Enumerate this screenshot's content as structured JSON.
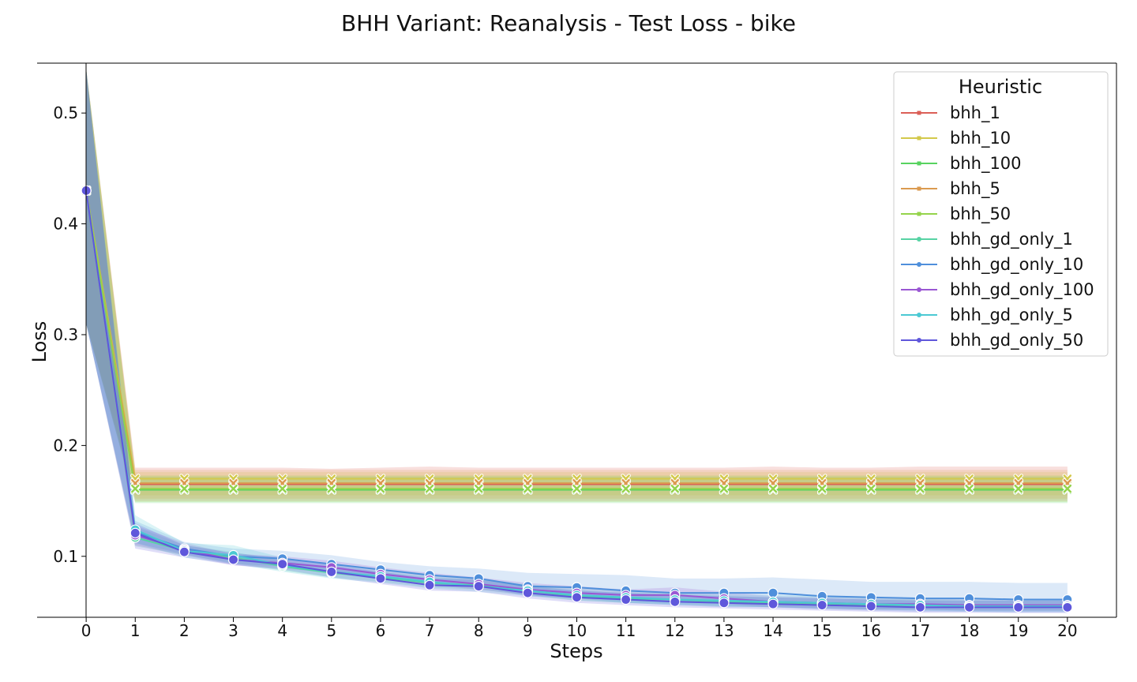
{
  "chart_data": {
    "type": "line",
    "title": "BHH Variant: Reanalysis - Test Loss - bike",
    "xlabel": "Steps",
    "ylabel": "Loss",
    "xlim": [
      -1,
      21
    ],
    "ylim": [
      0.045,
      0.545
    ],
    "x": [
      0,
      1,
      2,
      3,
      4,
      5,
      6,
      7,
      8,
      9,
      10,
      11,
      12,
      13,
      14,
      15,
      16,
      17,
      18,
      19,
      20
    ],
    "xticks": [
      0,
      1,
      2,
      3,
      4,
      5,
      6,
      7,
      8,
      9,
      10,
      11,
      12,
      13,
      14,
      15,
      16,
      17,
      18,
      19,
      20
    ],
    "yticks": [
      0.1,
      0.2,
      0.3,
      0.4,
      0.5
    ],
    "legend": {
      "title": "Heuristic",
      "position": "top-right"
    },
    "series": [
      {
        "name": "bhh_1",
        "color": "#db5f57",
        "marker": "x",
        "values": [
          0.43,
          0.165,
          0.165,
          0.165,
          0.165,
          0.165,
          0.165,
          0.165,
          0.165,
          0.165,
          0.165,
          0.165,
          0.165,
          0.165,
          0.165,
          0.165,
          0.165,
          0.165,
          0.165,
          0.165,
          0.165
        ],
        "band": [
          [
            0.31,
            0.54
          ],
          [
            0.15,
            0.18
          ],
          [
            0.15,
            0.18
          ],
          [
            0.15,
            0.18
          ],
          [
            0.15,
            0.18
          ],
          [
            0.15,
            0.179
          ],
          [
            0.15,
            0.18
          ],
          [
            0.15,
            0.181
          ],
          [
            0.15,
            0.18
          ],
          [
            0.15,
            0.18
          ],
          [
            0.15,
            0.18
          ],
          [
            0.15,
            0.18
          ],
          [
            0.15,
            0.18
          ],
          [
            0.15,
            0.18
          ],
          [
            0.15,
            0.181
          ],
          [
            0.15,
            0.18
          ],
          [
            0.15,
            0.18
          ],
          [
            0.15,
            0.181
          ],
          [
            0.15,
            0.181
          ],
          [
            0.15,
            0.181
          ],
          [
            0.15,
            0.181
          ]
        ]
      },
      {
        "name": "bhh_10",
        "color": "#d3c94b",
        "marker": "x",
        "values": [
          0.43,
          0.17,
          0.17,
          0.17,
          0.17,
          0.17,
          0.17,
          0.17,
          0.17,
          0.17,
          0.17,
          0.17,
          0.17,
          0.17,
          0.17,
          0.17,
          0.17,
          0.17,
          0.17,
          0.17,
          0.17
        ],
        "band": [
          [
            0.31,
            0.54
          ],
          [
            0.155,
            0.176
          ],
          [
            0.155,
            0.176
          ],
          [
            0.155,
            0.176
          ],
          [
            0.155,
            0.176
          ],
          [
            0.155,
            0.176
          ],
          [
            0.155,
            0.176
          ],
          [
            0.155,
            0.176
          ],
          [
            0.155,
            0.176
          ],
          [
            0.155,
            0.176
          ],
          [
            0.155,
            0.176
          ],
          [
            0.155,
            0.176
          ],
          [
            0.155,
            0.176
          ],
          [
            0.155,
            0.176
          ],
          [
            0.155,
            0.176
          ],
          [
            0.155,
            0.176
          ],
          [
            0.155,
            0.176
          ],
          [
            0.155,
            0.176
          ],
          [
            0.155,
            0.176
          ],
          [
            0.155,
            0.176
          ],
          [
            0.155,
            0.176
          ]
        ]
      },
      {
        "name": "bhh_100",
        "color": "#57d35f",
        "marker": "x",
        "values": [
          0.43,
          0.16,
          0.16,
          0.16,
          0.16,
          0.16,
          0.16,
          0.16,
          0.16,
          0.16,
          0.16,
          0.16,
          0.16,
          0.16,
          0.16,
          0.16,
          0.16,
          0.16,
          0.16,
          0.16,
          0.16
        ],
        "band": [
          [
            0.31,
            0.54
          ],
          [
            0.148,
            0.172
          ],
          [
            0.148,
            0.172
          ],
          [
            0.148,
            0.172
          ],
          [
            0.148,
            0.172
          ],
          [
            0.148,
            0.172
          ],
          [
            0.148,
            0.172
          ],
          [
            0.148,
            0.172
          ],
          [
            0.148,
            0.172
          ],
          [
            0.148,
            0.172
          ],
          [
            0.148,
            0.172
          ],
          [
            0.148,
            0.172
          ],
          [
            0.148,
            0.172
          ],
          [
            0.148,
            0.172
          ],
          [
            0.148,
            0.172
          ],
          [
            0.148,
            0.172
          ],
          [
            0.148,
            0.172
          ],
          [
            0.148,
            0.172
          ],
          [
            0.148,
            0.172
          ],
          [
            0.148,
            0.172
          ],
          [
            0.148,
            0.172
          ]
        ]
      },
      {
        "name": "bhh_5",
        "color": "#db9a4f",
        "marker": "x",
        "values": [
          0.43,
          0.166,
          0.166,
          0.166,
          0.166,
          0.166,
          0.166,
          0.166,
          0.166,
          0.166,
          0.166,
          0.166,
          0.166,
          0.166,
          0.166,
          0.166,
          0.166,
          0.166,
          0.166,
          0.166,
          0.166
        ],
        "band": [
          [
            0.31,
            0.54
          ],
          [
            0.152,
            0.178
          ],
          [
            0.152,
            0.178
          ],
          [
            0.152,
            0.178
          ],
          [
            0.152,
            0.178
          ],
          [
            0.152,
            0.178
          ],
          [
            0.152,
            0.178
          ],
          [
            0.152,
            0.178
          ],
          [
            0.152,
            0.178
          ],
          [
            0.152,
            0.178
          ],
          [
            0.152,
            0.178
          ],
          [
            0.152,
            0.178
          ],
          [
            0.152,
            0.178
          ],
          [
            0.152,
            0.178
          ],
          [
            0.152,
            0.178
          ],
          [
            0.152,
            0.178
          ],
          [
            0.152,
            0.178
          ],
          [
            0.152,
            0.178
          ],
          [
            0.152,
            0.178
          ],
          [
            0.152,
            0.178
          ],
          [
            0.152,
            0.178
          ]
        ]
      },
      {
        "name": "bhh_50",
        "color": "#95d34b",
        "marker": "x",
        "values": [
          0.43,
          0.161,
          0.161,
          0.161,
          0.161,
          0.161,
          0.161,
          0.161,
          0.161,
          0.161,
          0.161,
          0.161,
          0.161,
          0.161,
          0.161,
          0.161,
          0.161,
          0.161,
          0.161,
          0.161,
          0.161
        ],
        "band": [
          [
            0.31,
            0.54
          ],
          [
            0.149,
            0.173
          ],
          [
            0.149,
            0.173
          ],
          [
            0.149,
            0.173
          ],
          [
            0.149,
            0.173
          ],
          [
            0.149,
            0.173
          ],
          [
            0.149,
            0.173
          ],
          [
            0.149,
            0.173
          ],
          [
            0.149,
            0.173
          ],
          [
            0.149,
            0.173
          ],
          [
            0.149,
            0.173
          ],
          [
            0.149,
            0.173
          ],
          [
            0.149,
            0.173
          ],
          [
            0.149,
            0.173
          ],
          [
            0.149,
            0.173
          ],
          [
            0.149,
            0.173
          ],
          [
            0.149,
            0.173
          ],
          [
            0.149,
            0.173
          ],
          [
            0.149,
            0.173
          ],
          [
            0.149,
            0.173
          ],
          [
            0.149,
            0.173
          ]
        ]
      },
      {
        "name": "bhh_gd_only_1",
        "color": "#57d3a4",
        "marker": "o",
        "values": [
          0.43,
          0.117,
          0.105,
          0.099,
          0.091,
          0.085,
          0.081,
          0.076,
          0.074,
          0.069,
          0.064,
          0.062,
          0.061,
          0.059,
          0.058,
          0.057,
          0.056,
          0.056,
          0.055,
          0.055,
          0.055
        ],
        "band": [
          [
            0.31,
            0.54
          ],
          [
            0.109,
            0.127
          ],
          [
            0.101,
            0.11
          ],
          [
            0.094,
            0.104
          ],
          [
            0.087,
            0.096
          ],
          [
            0.081,
            0.09
          ],
          [
            0.077,
            0.086
          ],
          [
            0.072,
            0.081
          ],
          [
            0.07,
            0.079
          ],
          [
            0.065,
            0.074
          ],
          [
            0.06,
            0.069
          ],
          [
            0.058,
            0.067
          ],
          [
            0.057,
            0.066
          ],
          [
            0.055,
            0.064
          ],
          [
            0.054,
            0.063
          ],
          [
            0.053,
            0.062
          ],
          [
            0.052,
            0.061
          ],
          [
            0.052,
            0.061
          ],
          [
            0.051,
            0.06
          ],
          [
            0.051,
            0.06
          ],
          [
            0.051,
            0.06
          ]
        ]
      },
      {
        "name": "bhh_gd_only_10",
        "color": "#4f8fdb",
        "marker": "o",
        "values": [
          0.43,
          0.122,
          0.107,
          0.1,
          0.098,
          0.093,
          0.088,
          0.083,
          0.08,
          0.073,
          0.072,
          0.069,
          0.067,
          0.067,
          0.067,
          0.064,
          0.063,
          0.062,
          0.062,
          0.061,
          0.061
        ],
        "band": [
          [
            0.31,
            0.54
          ],
          [
            0.112,
            0.132
          ],
          [
            0.102,
            0.113
          ],
          [
            0.093,
            0.107
          ],
          [
            0.091,
            0.105
          ],
          [
            0.086,
            0.101
          ],
          [
            0.081,
            0.095
          ],
          [
            0.075,
            0.091
          ],
          [
            0.073,
            0.089
          ],
          [
            0.064,
            0.085
          ],
          [
            0.062,
            0.084
          ],
          [
            0.058,
            0.083
          ],
          [
            0.056,
            0.08
          ],
          [
            0.054,
            0.08
          ],
          [
            0.054,
            0.081
          ],
          [
            0.052,
            0.079
          ],
          [
            0.051,
            0.077
          ],
          [
            0.05,
            0.077
          ],
          [
            0.05,
            0.077
          ],
          [
            0.049,
            0.076
          ],
          [
            0.049,
            0.076
          ]
        ]
      },
      {
        "name": "bhh_gd_only_100",
        "color": "#9a57d3",
        "marker": "o",
        "values": [
          0.43,
          0.119,
          0.106,
          0.097,
          0.094,
          0.09,
          0.084,
          0.079,
          0.075,
          0.07,
          0.067,
          0.065,
          0.065,
          0.062,
          0.059,
          0.058,
          0.057,
          0.057,
          0.056,
          0.056,
          0.056
        ],
        "band": [
          [
            0.31,
            0.54
          ],
          [
            0.11,
            0.128
          ],
          [
            0.101,
            0.112
          ],
          [
            0.092,
            0.102
          ],
          [
            0.089,
            0.1
          ],
          [
            0.085,
            0.096
          ],
          [
            0.079,
            0.09
          ],
          [
            0.074,
            0.085
          ],
          [
            0.07,
            0.081
          ],
          [
            0.065,
            0.076
          ],
          [
            0.062,
            0.073
          ],
          [
            0.06,
            0.07
          ],
          [
            0.06,
            0.072
          ],
          [
            0.057,
            0.068
          ],
          [
            0.054,
            0.064
          ],
          [
            0.053,
            0.063
          ],
          [
            0.052,
            0.062
          ],
          [
            0.052,
            0.062
          ],
          [
            0.051,
            0.061
          ],
          [
            0.051,
            0.061
          ],
          [
            0.051,
            0.061
          ]
        ]
      },
      {
        "name": "bhh_gd_only_5",
        "color": "#4bc9d3",
        "marker": "o",
        "values": [
          0.43,
          0.124,
          0.105,
          0.101,
          0.092,
          0.086,
          0.082,
          0.077,
          0.073,
          0.069,
          0.065,
          0.063,
          0.061,
          0.06,
          0.059,
          0.058,
          0.057,
          0.056,
          0.055,
          0.055,
          0.055
        ],
        "band": [
          [
            0.31,
            0.54
          ],
          [
            0.112,
            0.137
          ],
          [
            0.099,
            0.112
          ],
          [
            0.093,
            0.11
          ],
          [
            0.086,
            0.099
          ],
          [
            0.08,
            0.093
          ],
          [
            0.076,
            0.089
          ],
          [
            0.071,
            0.084
          ],
          [
            0.068,
            0.079
          ],
          [
            0.064,
            0.075
          ],
          [
            0.06,
            0.071
          ],
          [
            0.058,
            0.069
          ],
          [
            0.056,
            0.067
          ],
          [
            0.055,
            0.066
          ],
          [
            0.054,
            0.065
          ],
          [
            0.053,
            0.064
          ],
          [
            0.052,
            0.063
          ],
          [
            0.051,
            0.062
          ],
          [
            0.05,
            0.061
          ],
          [
            0.05,
            0.061
          ],
          [
            0.05,
            0.061
          ]
        ]
      },
      {
        "name": "bhh_gd_only_50",
        "color": "#5f57db",
        "marker": "o",
        "values": [
          0.43,
          0.121,
          0.104,
          0.097,
          0.093,
          0.086,
          0.08,
          0.074,
          0.073,
          0.067,
          0.063,
          0.061,
          0.059,
          0.058,
          0.057,
          0.056,
          0.055,
          0.054,
          0.054,
          0.054,
          0.054
        ],
        "band": [
          [
            0.31,
            0.54
          ],
          [
            0.107,
            0.13
          ],
          [
            0.099,
            0.11
          ],
          [
            0.092,
            0.103
          ],
          [
            0.088,
            0.099
          ],
          [
            0.081,
            0.092
          ],
          [
            0.075,
            0.086
          ],
          [
            0.069,
            0.08
          ],
          [
            0.068,
            0.079
          ],
          [
            0.062,
            0.073
          ],
          [
            0.058,
            0.069
          ],
          [
            0.056,
            0.067
          ],
          [
            0.054,
            0.065
          ],
          [
            0.053,
            0.064
          ],
          [
            0.052,
            0.063
          ],
          [
            0.051,
            0.062
          ],
          [
            0.05,
            0.061
          ],
          [
            0.049,
            0.06
          ],
          [
            0.049,
            0.06
          ],
          [
            0.049,
            0.06
          ],
          [
            0.049,
            0.06
          ]
        ]
      }
    ]
  }
}
